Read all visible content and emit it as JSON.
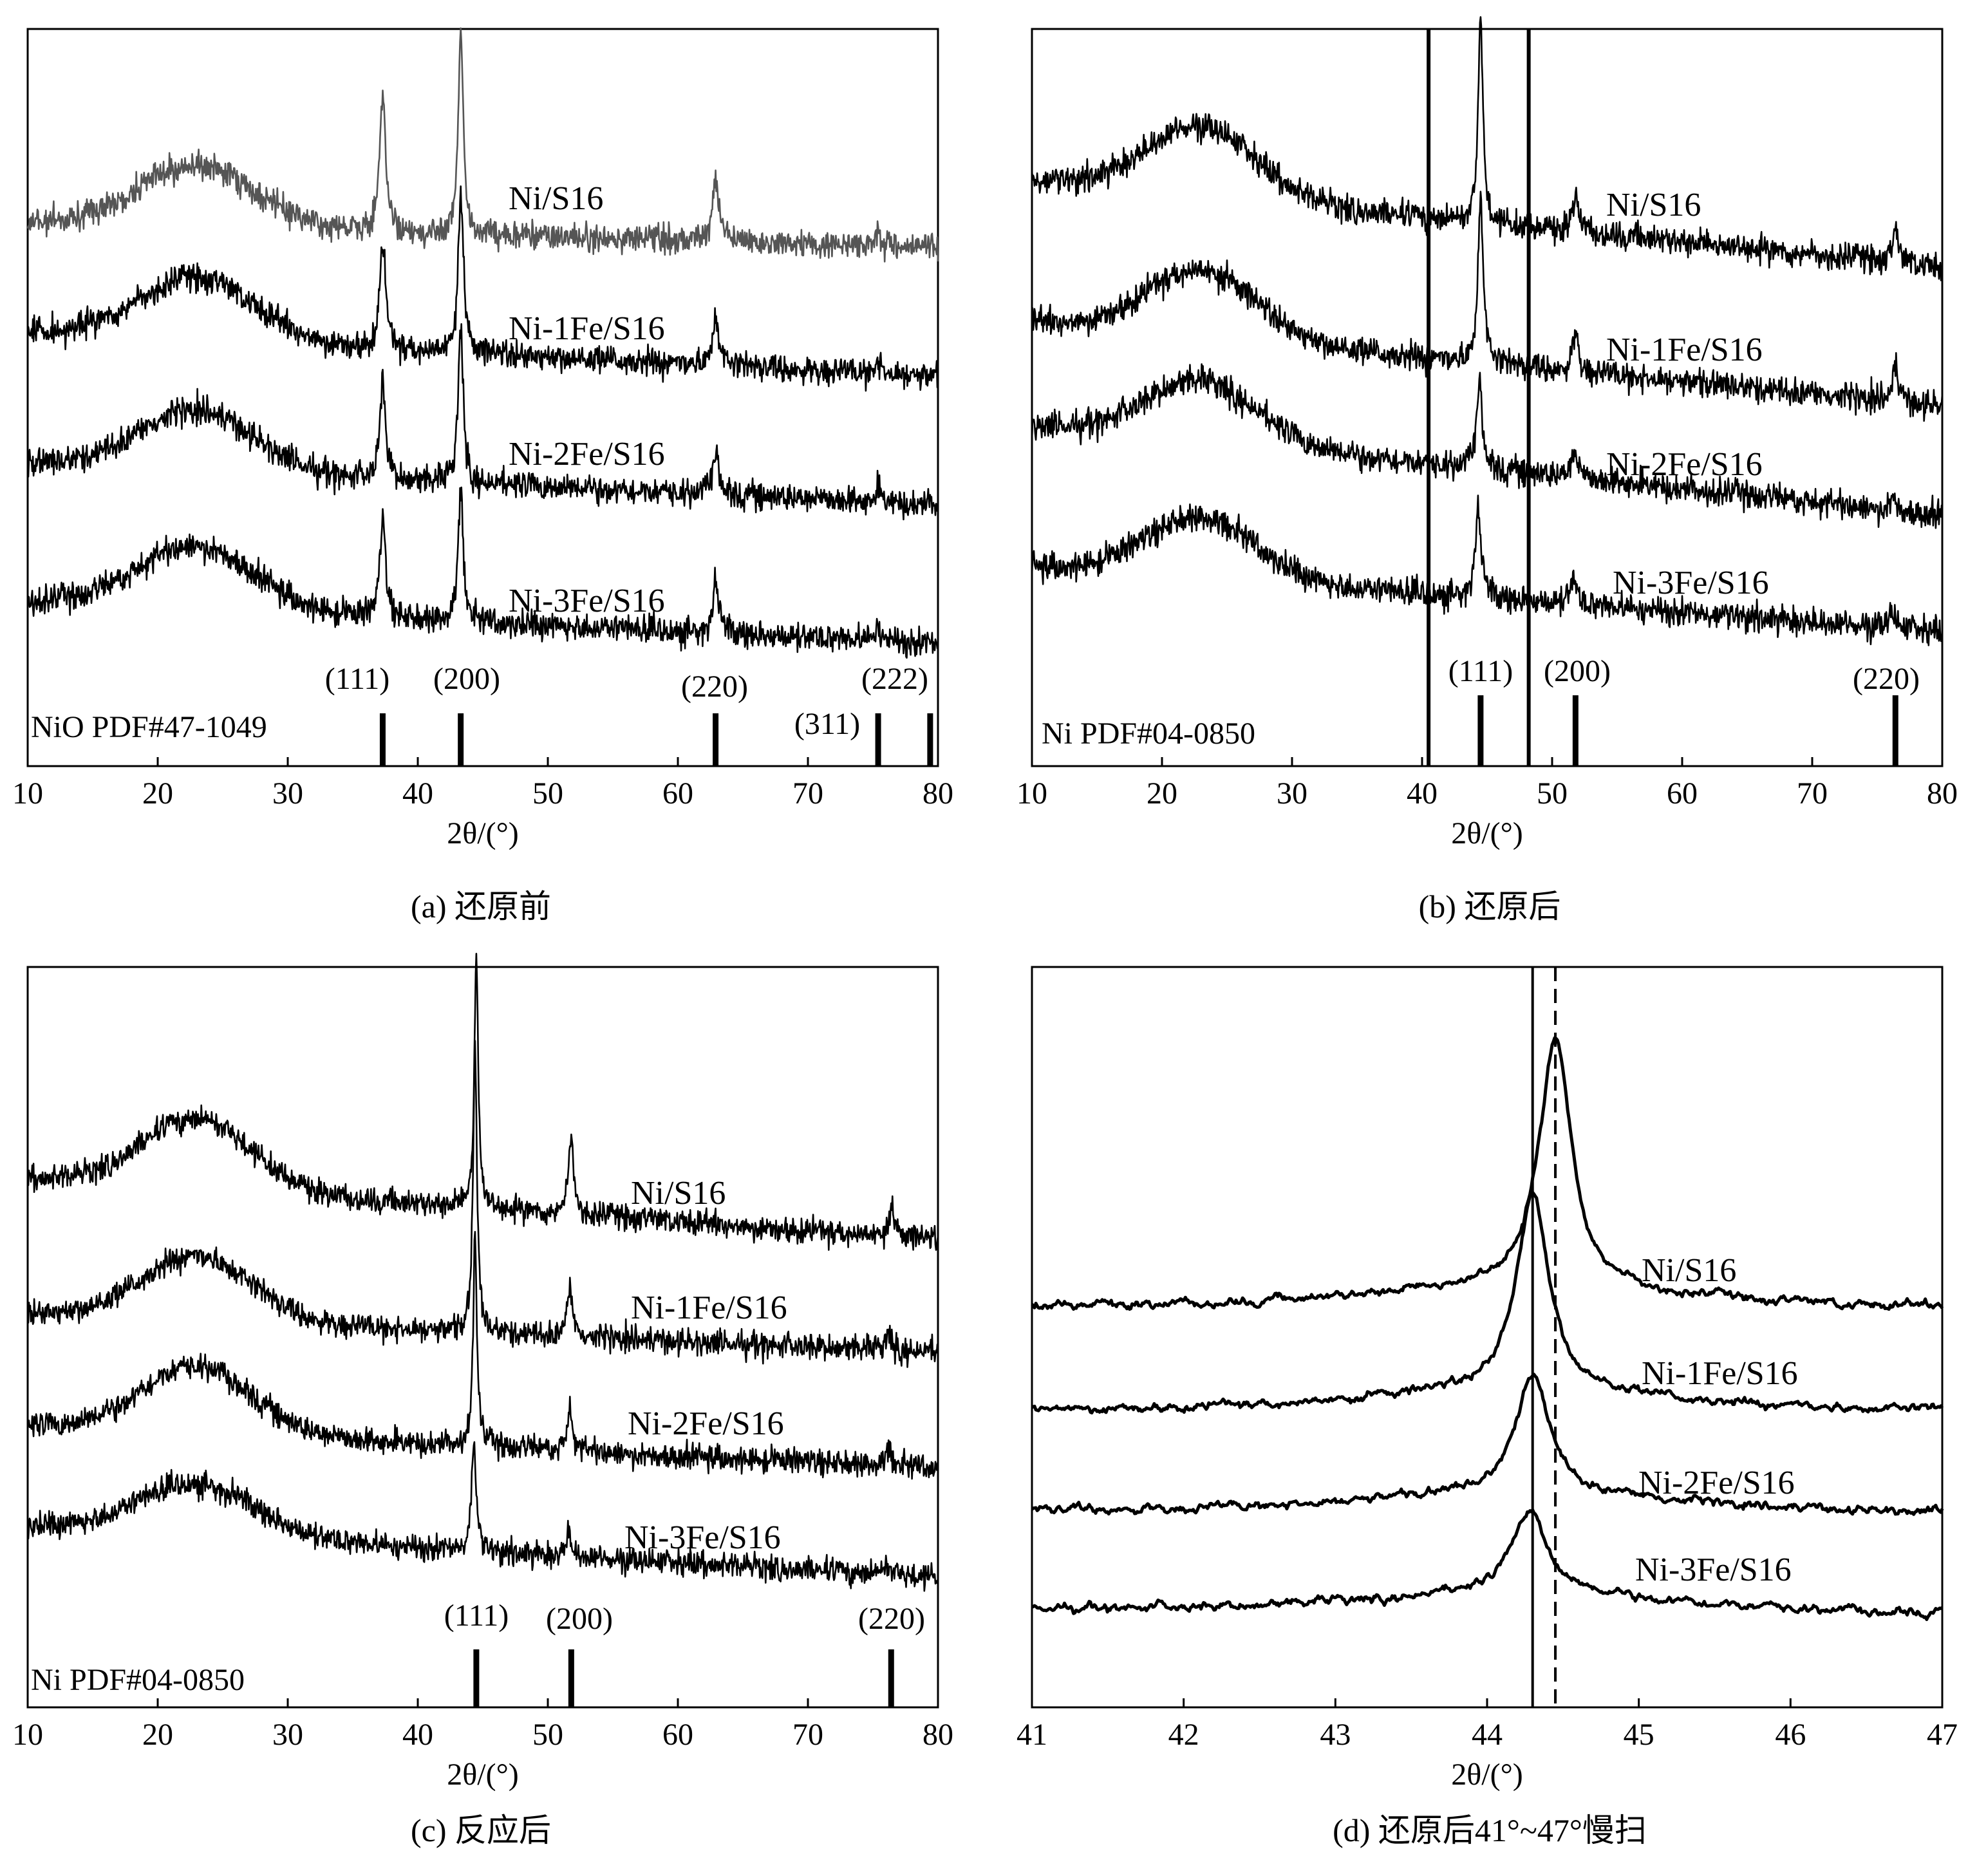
{
  "chart_data": [
    {
      "id": "a",
      "type": "line",
      "caption": "(a) 还原前",
      "xlabel": "2θ/(°)",
      "xlim": [
        10,
        80
      ],
      "xticks": [
        10,
        20,
        30,
        40,
        50,
        60,
        70,
        80
      ],
      "reference_label": "NiO PDF#47-1049",
      "reference_lines": [
        {
          "x": 37.3,
          "label": "(111)"
        },
        {
          "x": 43.3,
          "label": "(200)"
        },
        {
          "x": 62.9,
          "label": "(220)"
        },
        {
          "x": 75.4,
          "label": "(311)"
        },
        {
          "x": 79.4,
          "label": "(222)"
        }
      ],
      "series": [
        {
          "name": "Ni/S16",
          "color": "#555555",
          "peaks": [
            [
              37.3,
              1.0
            ],
            [
              43.3,
              1.0
            ],
            [
              62.9,
              1.0
            ],
            [
              75.4,
              1.0
            ]
          ]
        },
        {
          "name": "Ni-1Fe/S16",
          "color": "#000000",
          "peaks": [
            [
              37.3,
              1.0
            ],
            [
              43.3,
              1.0
            ],
            [
              62.9,
              1.0
            ],
            [
              75.4,
              1.0
            ]
          ]
        },
        {
          "name": "Ni-2Fe/S16",
          "color": "#000000",
          "peaks": [
            [
              37.3,
              1.0
            ],
            [
              43.3,
              1.0
            ],
            [
              62.9,
              1.0
            ],
            [
              75.4,
              1.0
            ]
          ]
        },
        {
          "name": "Ni-3Fe/S16",
          "color": "#000000",
          "peaks": [
            [
              37.3,
              1.0
            ],
            [
              43.3,
              1.0
            ],
            [
              62.9,
              1.0
            ],
            [
              75.4,
              1.0
            ]
          ]
        }
      ]
    },
    {
      "id": "b",
      "type": "line",
      "caption": "(b) 还原后",
      "xlabel": "2θ/(°)",
      "xlim": [
        10,
        80
      ],
      "xticks": [
        10,
        20,
        30,
        40,
        50,
        60,
        70,
        80
      ],
      "reference_label": "Ni PDF#04-0850",
      "reference_lines": [
        {
          "x": 44.5,
          "label": "(111)"
        },
        {
          "x": 51.8,
          "label": "(200)"
        },
        {
          "x": 76.4,
          "label": "(220)"
        }
      ],
      "vertical_lines": [
        40.5,
        48.2
      ],
      "series": [
        {
          "name": "Ni/S16",
          "color": "#000000",
          "peaks": [
            [
              44.5,
              1.0
            ],
            [
              51.8,
              1.0
            ],
            [
              76.4,
              1.0
            ]
          ]
        },
        {
          "name": "Ni-1Fe/S16",
          "color": "#000000",
          "peaks": [
            [
              44.5,
              1.0
            ],
            [
              51.8,
              1.0
            ],
            [
              76.4,
              1.0
            ]
          ]
        },
        {
          "name": "Ni-2Fe/S16",
          "color": "#000000",
          "peaks": [
            [
              44.4,
              1.0
            ],
            [
              51.7,
              1.0
            ],
            [
              76.2,
              1.0
            ]
          ]
        },
        {
          "name": "Ni-3Fe/S16",
          "color": "#000000",
          "peaks": [
            [
              44.3,
              1.0
            ],
            [
              51.6,
              1.0
            ],
            [
              76.1,
              1.0
            ]
          ]
        }
      ]
    },
    {
      "id": "c",
      "type": "line",
      "caption": "(c) 反应后",
      "xlabel": "2θ/(°)",
      "xlim": [
        10,
        80
      ],
      "xticks": [
        10,
        20,
        30,
        40,
        50,
        60,
        70,
        80
      ],
      "reference_label": "Ni PDF#04-0850",
      "reference_lines": [
        {
          "x": 44.5,
          "label": "(111)"
        },
        {
          "x": 51.8,
          "label": "(200)"
        },
        {
          "x": 76.4,
          "label": "(220)"
        }
      ],
      "series": [
        {
          "name": "Ni/S16",
          "color": "#000000",
          "peaks": [
            [
              44.5,
              1.0
            ],
            [
              51.8,
              1.0
            ],
            [
              76.4,
              1.0
            ]
          ]
        },
        {
          "name": "Ni-1Fe/S16",
          "color": "#000000",
          "peaks": [
            [
              44.4,
              1.0
            ],
            [
              51.7,
              1.0
            ],
            [
              76.2,
              1.0
            ]
          ]
        },
        {
          "name": "Ni-2Fe/S16",
          "color": "#000000",
          "peaks": [
            [
              44.4,
              1.0
            ],
            [
              51.7,
              1.0
            ],
            [
              76.2,
              1.0
            ]
          ]
        },
        {
          "name": "Ni-3Fe/S16",
          "color": "#000000",
          "peaks": [
            [
              44.3,
              1.0
            ],
            [
              51.6,
              1.0
            ],
            [
              76.1,
              1.0
            ]
          ]
        }
      ]
    },
    {
      "id": "d",
      "type": "line",
      "caption": "(d) 还原后41°~47°慢扫",
      "xlabel": "2θ/(°)",
      "xlim": [
        41,
        47
      ],
      "xticks": [
        41,
        42,
        43,
        44,
        45,
        46,
        47
      ],
      "vertical_lines": [
        44.3
      ],
      "dashed_lines": [
        44.45
      ],
      "series": [
        {
          "name": "Ni/S16",
          "color": "#000000",
          "peaks": [
            [
              44.45,
              1.0
            ]
          ]
        },
        {
          "name": "Ni-1Fe/S16",
          "color": "#000000",
          "peaks": [
            [
              44.3,
              1.0
            ]
          ]
        },
        {
          "name": "Ni-2Fe/S16",
          "color": "#000000",
          "peaks": [
            [
              44.3,
              1.0
            ]
          ]
        },
        {
          "name": "Ni-3Fe/S16",
          "color": "#000000",
          "peaks": [
            [
              44.28,
              1.0
            ]
          ]
        }
      ]
    }
  ]
}
